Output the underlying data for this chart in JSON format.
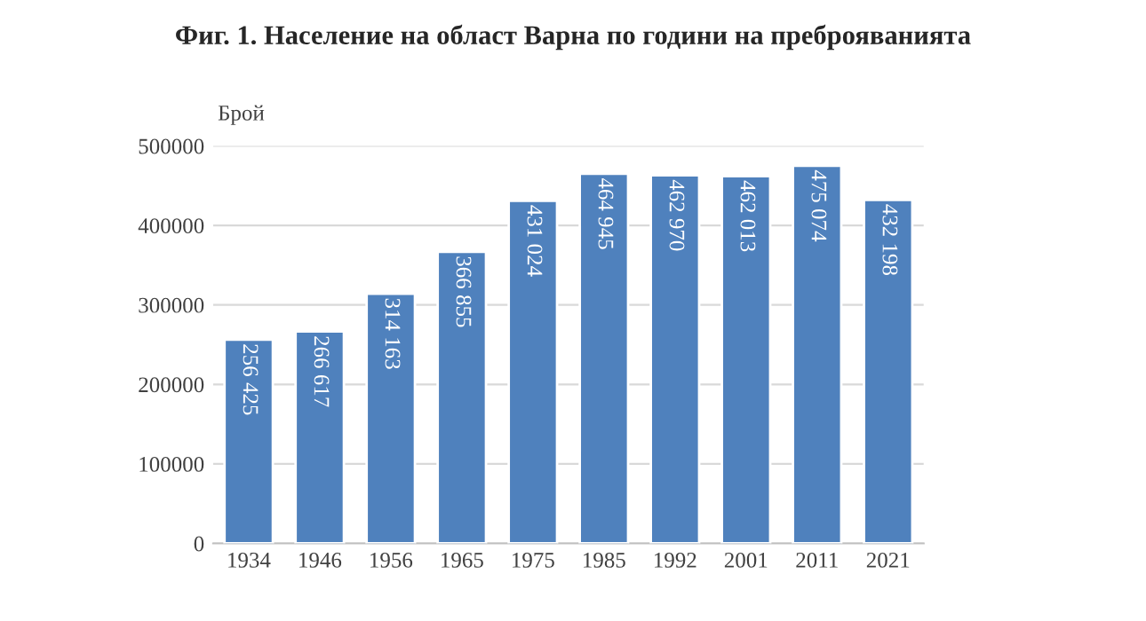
{
  "chart_data": {
    "type": "bar",
    "title": "Фиг. 1. Население на област Варна по години на преброяванията",
    "ylabel": "Брой",
    "categories": [
      "1934",
      "1946",
      "1956",
      "1965",
      "1975",
      "1985",
      "1992",
      "2001",
      "2011",
      "2021"
    ],
    "values": [
      256425,
      266617,
      314163,
      366855,
      431024,
      464945,
      462970,
      462013,
      475074,
      432198
    ],
    "value_labels": [
      "256 425",
      "266 617",
      "314 163",
      "366 855",
      "431 024",
      "464 945",
      "462 970",
      "462 013",
      "475 074",
      "432 198"
    ],
    "color": "#4f81bd",
    "ylim": [
      0,
      500000
    ],
    "yticks": [
      0,
      100000,
      200000,
      300000,
      400000,
      500000
    ],
    "grid": "y",
    "legend": false
  }
}
